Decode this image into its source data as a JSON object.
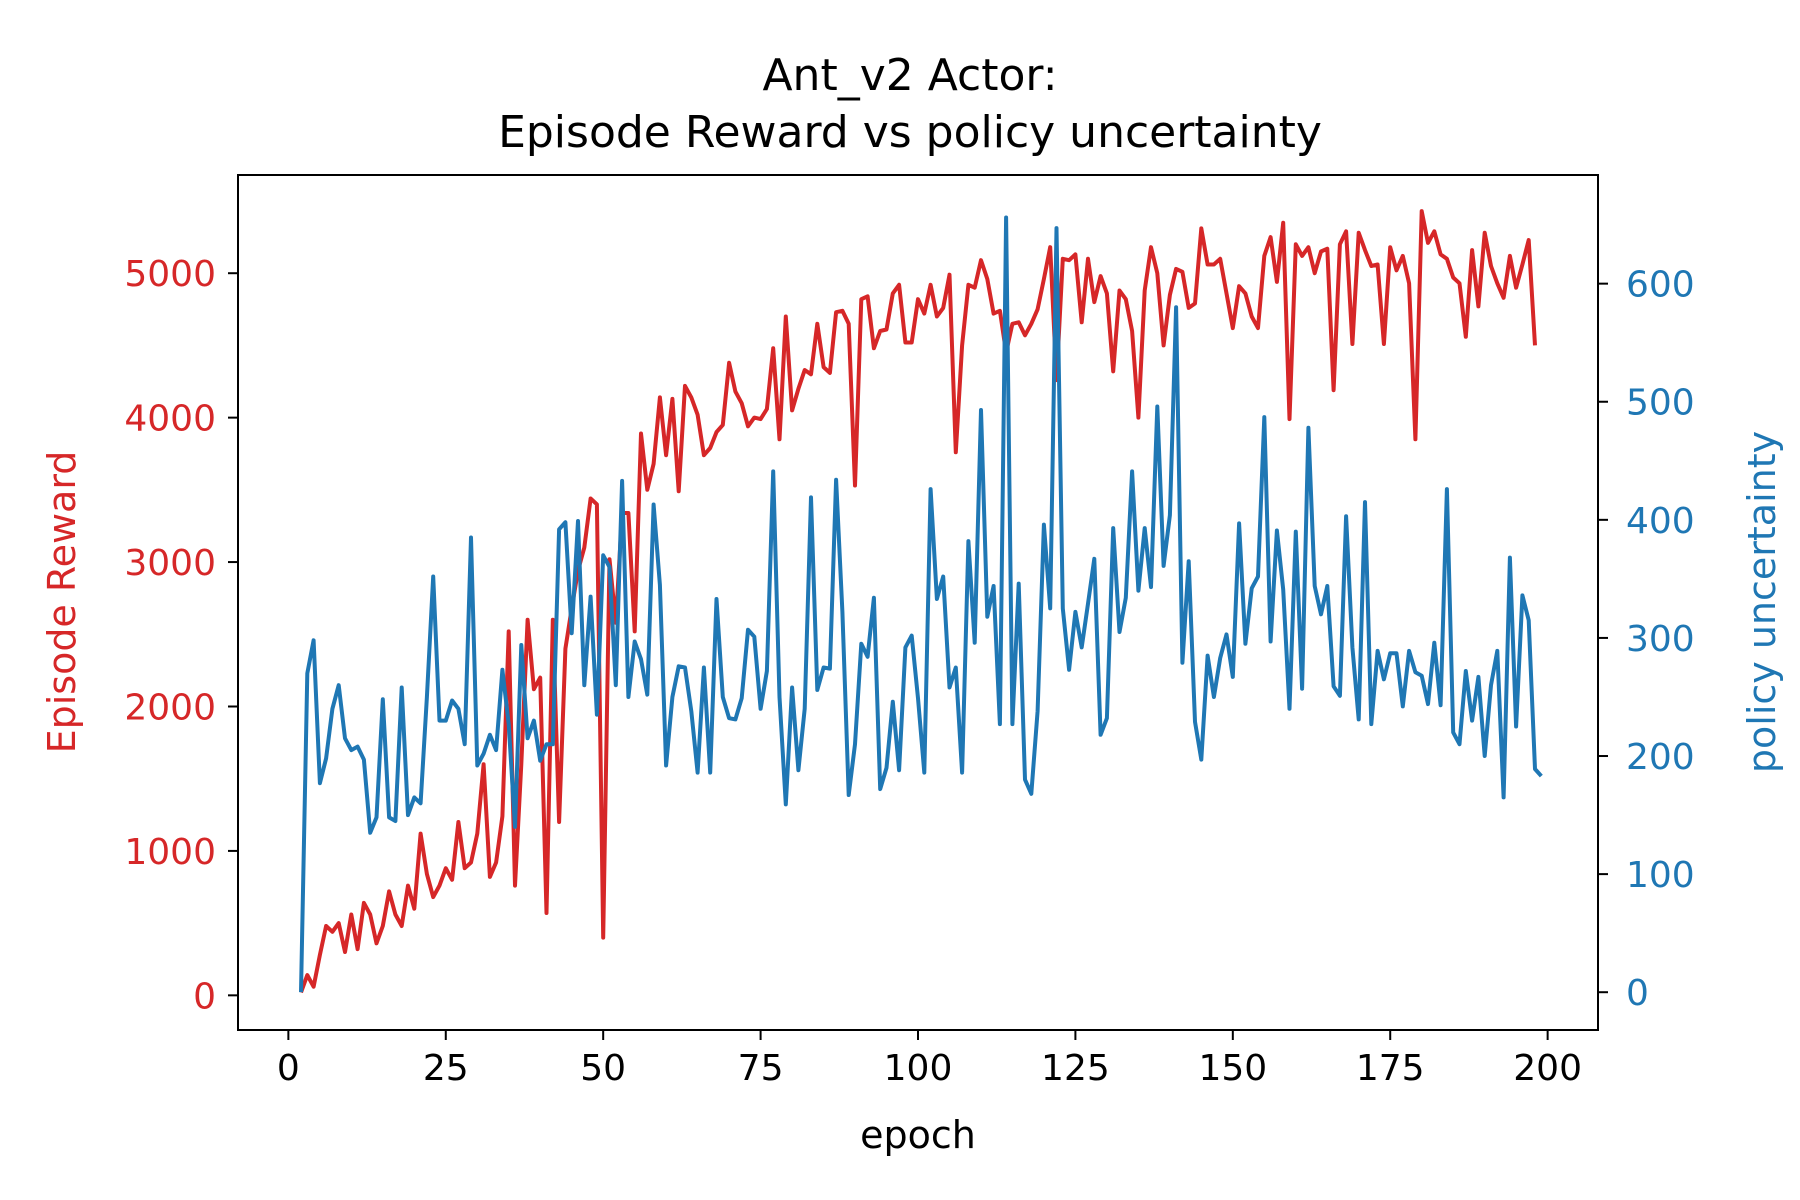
{
  "chart_data": {
    "type": "line",
    "title_line1": "Ant_v2 Actor:",
    "title_line2": "Episode Reward vs policy uncertainty",
    "xlabel": "epoch",
    "ylabel_left": "Episode Reward",
    "ylabel_right": "policy uncertainty",
    "xlim": [
      -8,
      208
    ],
    "ylim_left": [
      -240,
      5680
    ],
    "ylim_right": [
      -32,
      692
    ],
    "x_ticks": [
      0,
      25,
      50,
      75,
      100,
      125,
      150,
      175,
      200
    ],
    "y_left_ticks": [
      0,
      1000,
      2000,
      3000,
      4000,
      5000
    ],
    "y_right_ticks": [
      0,
      100,
      200,
      300,
      400,
      500,
      600
    ],
    "colors": {
      "left": "#d62728",
      "right": "#1f77b4",
      "axis": "#000000"
    },
    "grid": false,
    "series": [
      {
        "name": "Episode Reward",
        "axis": "left",
        "color": "#d62728",
        "x_start": 2,
        "x_step": 1,
        "values": [
          20,
          140,
          60,
          280,
          480,
          440,
          500,
          300,
          560,
          320,
          640,
          560,
          360,
          480,
          720,
          560,
          480,
          760,
          600,
          1120,
          840,
          680,
          760,
          880,
          800,
          1200,
          880,
          920,
          1120,
          1600,
          820,
          920,
          1240,
          2520,
          760,
          1600,
          2600,
          2120,
          2200,
          570,
          2600,
          1200,
          2400,
          2680,
          2940,
          3100,
          3440,
          3400,
          400,
          3020,
          2580,
          3340,
          3340,
          2520,
          3890,
          3500,
          3680,
          4140,
          3740,
          4130,
          3490,
          4220,
          4140,
          4020,
          3740,
          3790,
          3900,
          3950,
          4380,
          4180,
          4100,
          3940,
          4000,
          3990,
          4060,
          4480,
          3850,
          4700,
          4050,
          4200,
          4330,
          4300,
          4650,
          4350,
          4310,
          4730,
          4740,
          4650,
          3530,
          4820,
          4840,
          4480,
          4600,
          4610,
          4860,
          4920,
          4520,
          4520,
          4820,
          4720,
          4920,
          4700,
          4760,
          4990,
          3760,
          4500,
          4920,
          4900,
          5090,
          4960,
          4720,
          4740,
          4450,
          4650,
          4660,
          4570,
          4650,
          4750,
          4960,
          5180,
          4260,
          5100,
          5090,
          5130,
          4660,
          5100,
          4800,
          4980,
          4860,
          4320,
          4880,
          4820,
          4600,
          4000,
          4880,
          5180,
          5000,
          4500,
          4850,
          5030,
          5010,
          4760,
          4790,
          5310,
          5060,
          5060,
          5100,
          4860,
          4620,
          4910,
          4860,
          4700,
          4620,
          5120,
          5250,
          4940,
          5350,
          3990,
          5200,
          5120,
          5180,
          5000,
          5150,
          5170,
          4190,
          5200,
          5290,
          4510,
          5280,
          5160,
          5050,
          5060,
          4510,
          5180,
          5020,
          5120,
          4930,
          3850,
          5430,
          5210,
          5290,
          5130,
          5100,
          4970,
          4930,
          4560,
          5160,
          4770,
          5280,
          5050,
          4930,
          4830,
          5120,
          4900,
          5060,
          5230,
          4500
        ]
      },
      {
        "name": "policy uncertainty",
        "axis": "right",
        "color": "#1f77b4",
        "x_start": 2,
        "x_step": 1,
        "values": [
          0,
          270,
          298,
          177,
          198,
          240,
          260,
          215,
          205,
          208,
          197,
          135,
          148,
          248,
          148,
          145,
          258,
          150,
          165,
          160,
          250,
          352,
          230,
          230,
          247,
          240,
          210,
          385,
          192,
          202,
          218,
          205,
          273,
          227,
          140,
          294,
          215,
          230,
          196,
          210,
          210,
          392,
          398,
          304,
          399,
          260,
          335,
          235,
          370,
          360,
          260,
          433,
          250,
          297,
          282,
          252,
          413,
          345,
          192,
          250,
          276,
          275,
          238,
          186,
          275,
          186,
          333,
          250,
          232,
          231,
          249,
          307,
          301,
          240,
          272,
          441,
          250,
          159,
          258,
          188,
          240,
          419,
          256,
          275,
          274,
          434,
          322,
          167,
          210,
          295,
          284,
          334,
          172,
          190,
          246,
          188,
          292,
          302,
          249,
          186,
          426,
          333,
          352,
          258,
          275,
          186,
          382,
          296,
          493,
          318,
          344,
          227,
          656,
          227,
          346,
          180,
          168,
          238,
          396,
          325,
          647,
          325,
          273,
          322,
          292,
          329,
          367,
          218,
          232,
          393,
          305,
          334,
          441,
          340,
          393,
          343,
          496,
          361,
          404,
          580,
          279,
          365,
          229,
          197,
          285,
          250,
          283,
          303,
          267,
          397,
          295,
          342,
          352,
          487,
          297,
          391,
          341,
          240,
          390,
          257,
          478,
          344,
          320,
          344,
          259,
          251,
          403,
          292,
          231,
          415,
          227,
          289,
          265,
          287,
          287,
          242,
          289,
          271,
          268,
          244,
          296,
          243,
          426,
          220,
          210,
          272,
          230,
          267,
          200,
          260,
          289,
          165,
          368,
          225,
          336,
          315,
          189,
          183
        ]
      }
    ]
  }
}
